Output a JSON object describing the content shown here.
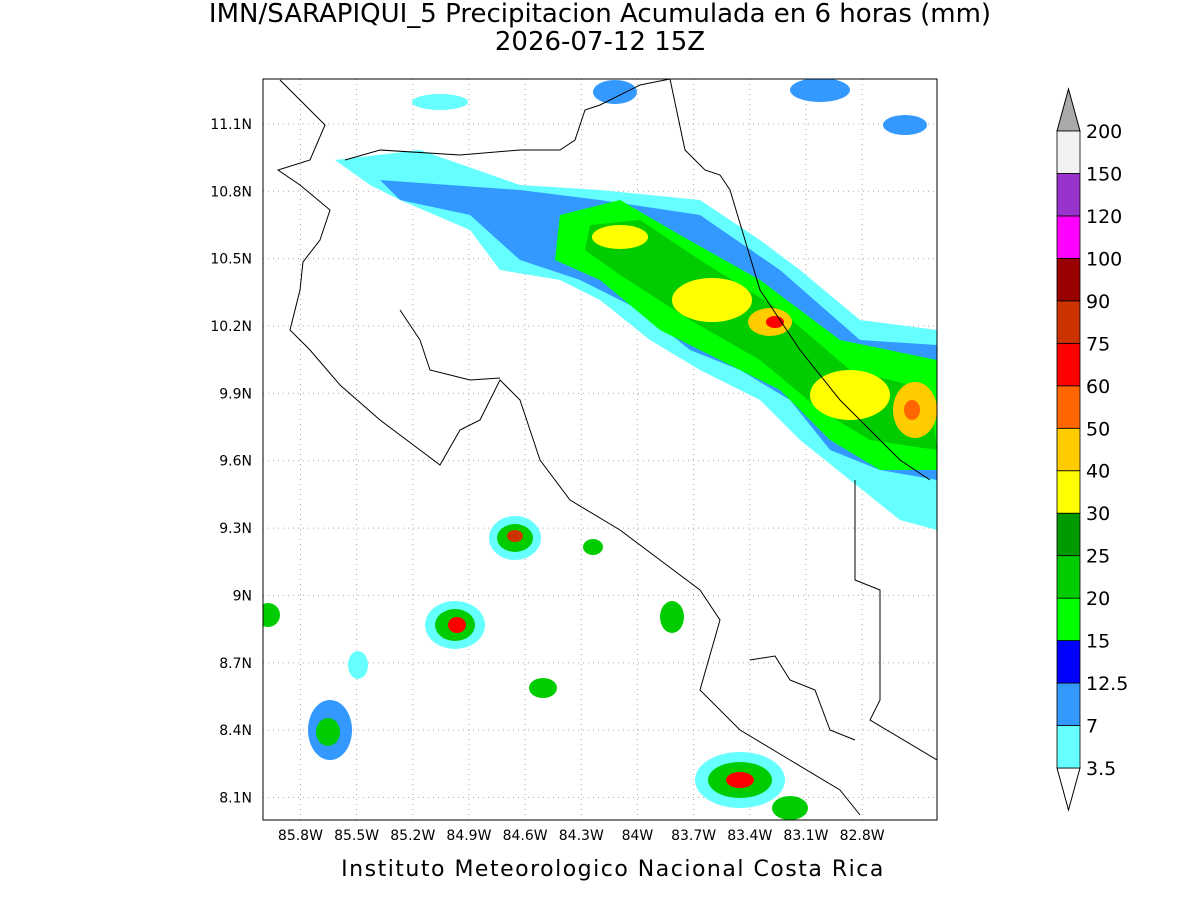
{
  "title": "IMN/SARAPIQUI_5 Precipitacion Acumulada en 6 horas (mm)",
  "subtitle": "2026-07-12 15Z",
  "footer": "Instituto Meteorologico Nacional Costa Rica",
  "map": {
    "xlim": [
      -86.0,
      -82.4
    ],
    "ylim": [
      8.0,
      11.3
    ],
    "grid": true,
    "xticks": [
      {
        "value": -85.8,
        "label": "85.8W"
      },
      {
        "value": -85.5,
        "label": "85.5W"
      },
      {
        "value": -85.2,
        "label": "85.2W"
      },
      {
        "value": -84.9,
        "label": "84.9W"
      },
      {
        "value": -84.6,
        "label": "84.6W"
      },
      {
        "value": -84.3,
        "label": "84.3W"
      },
      {
        "value": -84.0,
        "label": "84W"
      },
      {
        "value": -83.7,
        "label": "83.7W"
      },
      {
        "value": -83.4,
        "label": "83.4W"
      },
      {
        "value": -83.1,
        "label": "83.1W"
      },
      {
        "value": -82.8,
        "label": "82.8W"
      }
    ],
    "yticks": [
      {
        "value": 8.1,
        "label": "8.1N"
      },
      {
        "value": 8.4,
        "label": "8.4N"
      },
      {
        "value": 8.7,
        "label": "8.7N"
      },
      {
        "value": 9.0,
        "label": "9N"
      },
      {
        "value": 9.3,
        "label": "9.3N"
      },
      {
        "value": 9.6,
        "label": "9.6N"
      },
      {
        "value": 9.9,
        "label": "9.9N"
      },
      {
        "value": 10.2,
        "label": "10.2N"
      },
      {
        "value": 10.5,
        "label": "10.5N"
      },
      {
        "value": 10.8,
        "label": "10.8N"
      },
      {
        "value": 11.1,
        "label": "11.1N"
      }
    ]
  },
  "colorbar": {
    "levels": [
      3.5,
      7,
      12.5,
      15,
      20,
      25,
      30,
      40,
      50,
      60,
      75,
      90,
      100,
      120,
      150,
      200
    ],
    "colors": [
      "#66ffff",
      "#3399ff",
      "#0000ff",
      "#00ff00",
      "#00cc00",
      "#009900",
      "#ffff00",
      "#ffcc00",
      "#ff6600",
      "#ff0000",
      "#cc3300",
      "#990000",
      "#ff00ff",
      "#9933cc",
      "#f2f2f2"
    ],
    "under_color": "#ffffff",
    "over_color": "#aaaaaa"
  }
}
